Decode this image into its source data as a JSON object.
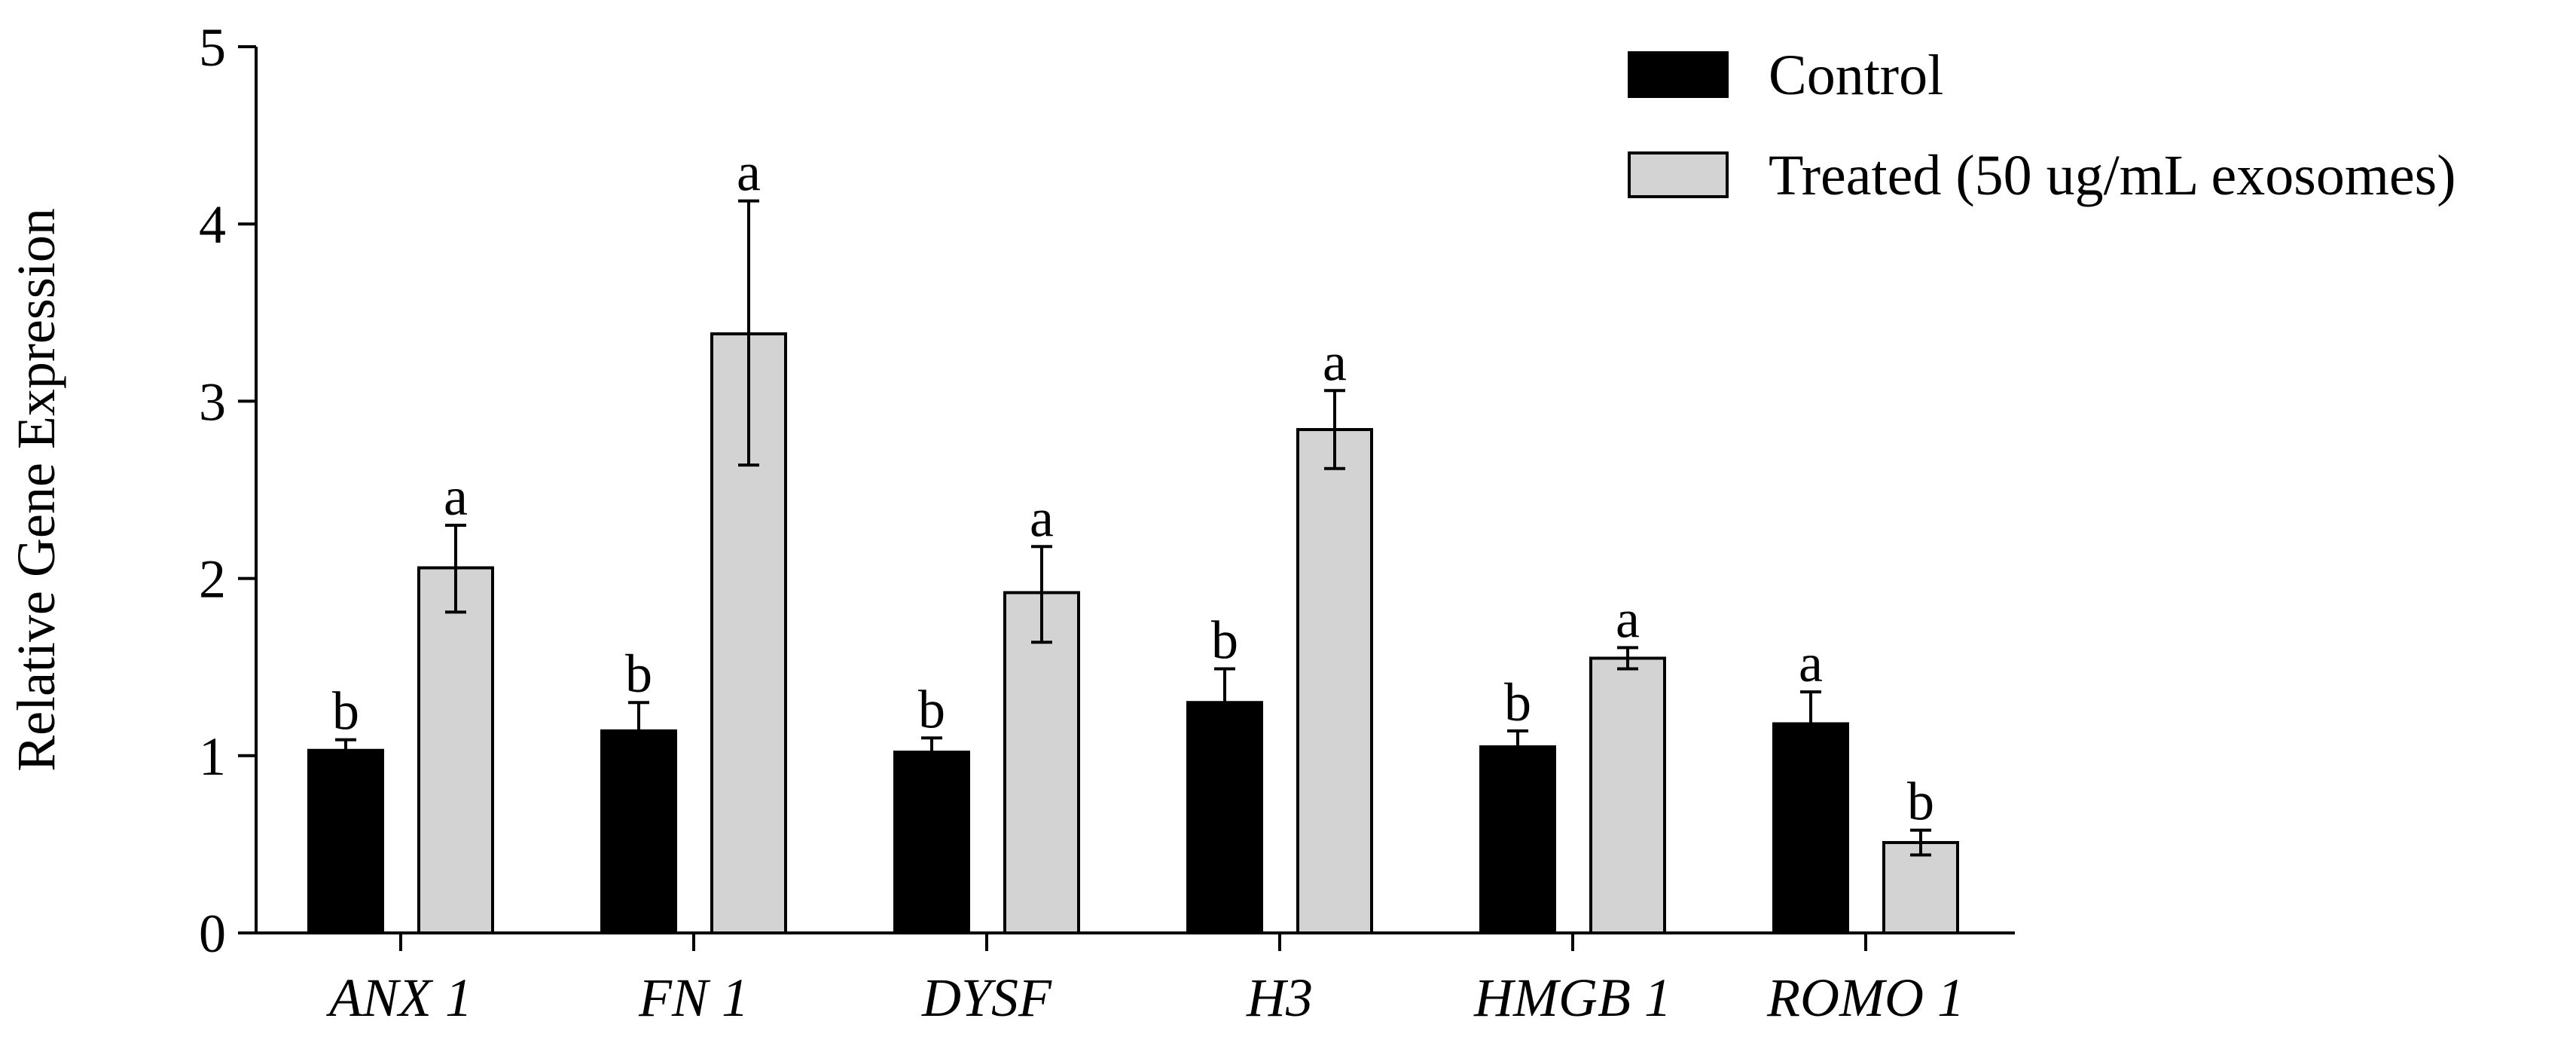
{
  "chart_data": {
    "type": "bar",
    "title": "",
    "xlabel": "",
    "ylabel": "Relative Gene Expression",
    "ylim": [
      0,
      5
    ],
    "yticks": [
      "0",
      "1",
      "2",
      "3",
      "4",
      "5"
    ],
    "grid": false,
    "legend_position": "top-right",
    "categories": [
      "ANX 1",
      "FN 1",
      "DYSF",
      "H3",
      "HMGB 1",
      "ROMO 1"
    ],
    "series": [
      {
        "name": "Control",
        "color": "#000000",
        "values": [
          1.03,
          1.14,
          1.02,
          1.3,
          1.05,
          1.18
        ],
        "error_low": [
          0.97,
          0.98,
          0.94,
          1.12,
          0.96,
          0.99
        ],
        "error_high": [
          1.09,
          1.3,
          1.1,
          1.49,
          1.14,
          1.36
        ],
        "labels": [
          "b",
          "b",
          "b",
          "b",
          "b",
          "a"
        ]
      },
      {
        "name": "Treated (50 ug/mL exosomes)",
        "color": "#d3d3d3",
        "values": [
          2.06,
          3.38,
          1.92,
          2.84,
          1.55,
          0.51
        ],
        "error_low": [
          1.81,
          2.64,
          1.64,
          2.62,
          1.49,
          0.44
        ],
        "error_high": [
          2.3,
          4.13,
          2.18,
          3.06,
          1.61,
          0.58
        ],
        "labels": [
          "a",
          "a",
          "a",
          "a",
          "a",
          "b"
        ]
      }
    ]
  }
}
